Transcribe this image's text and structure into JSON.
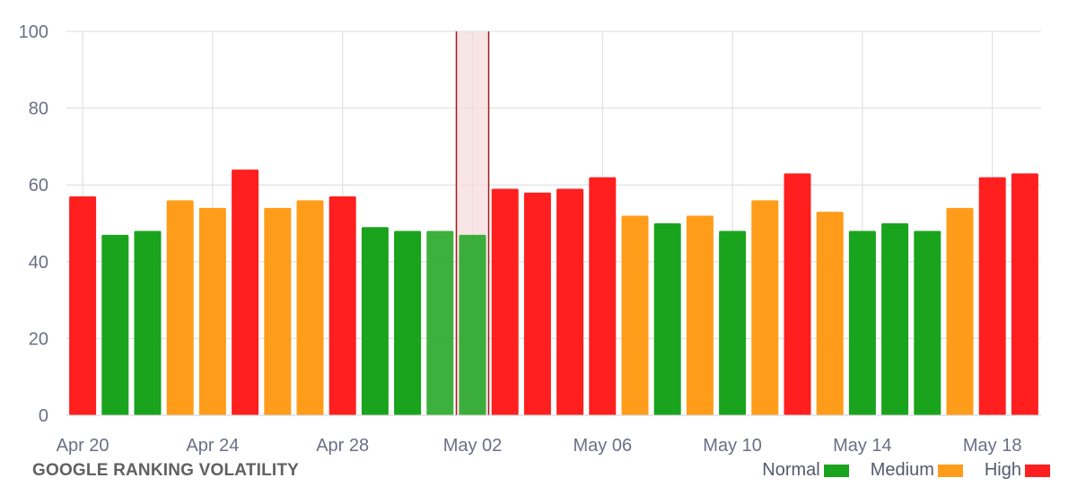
{
  "chart_data": {
    "type": "bar",
    "title": "GOOGLE RANKING VOLATILITY",
    "categories": [
      "Apr 20",
      "Apr 21",
      "Apr 22",
      "Apr 23",
      "Apr 24",
      "Apr 25",
      "Apr 26",
      "Apr 27",
      "Apr 28",
      "Apr 29",
      "Apr 30",
      "May 01",
      "May 02",
      "May 03",
      "May 04",
      "May 05",
      "May 06",
      "May 07",
      "May 08",
      "May 09",
      "May 10",
      "May 11",
      "May 12",
      "May 13",
      "May 14",
      "May 15",
      "May 16",
      "May 17",
      "May 18",
      "May 19"
    ],
    "values": [
      57,
      47,
      48,
      56,
      54,
      64,
      54,
      56,
      57,
      49,
      48,
      48,
      47,
      59,
      58,
      59,
      62,
      52,
      50,
      52,
      48,
      56,
      63,
      53,
      48,
      50,
      48,
      54,
      62,
      63
    ],
    "levels": [
      "High",
      "Normal",
      "Normal",
      "Medium",
      "Medium",
      "High",
      "Medium",
      "Medium",
      "High",
      "Normal",
      "Normal",
      "Normal",
      "Normal",
      "High",
      "High",
      "High",
      "High",
      "Medium",
      "Normal",
      "Medium",
      "Normal",
      "Medium",
      "High",
      "Medium",
      "Normal",
      "Normal",
      "Normal",
      "Medium",
      "High",
      "High"
    ],
    "x_tick_labels": [
      "Apr 20",
      "Apr 24",
      "Apr 28",
      "May 02",
      "May 06",
      "May 10",
      "May 14",
      "May 18"
    ],
    "y_ticks": [
      0,
      20,
      40,
      60,
      80,
      100
    ],
    "ylim": [
      0,
      100
    ],
    "grid": true,
    "highlight_category": "May 02",
    "legend_position": "bottom-right",
    "legend": [
      {
        "label": "Normal",
        "color": "#1aa31c"
      },
      {
        "label": "Medium",
        "color": "#ff9c1a"
      },
      {
        "label": "High",
        "color": "#ff1f1f"
      }
    ],
    "highlight_fill": "#f5dada",
    "highlight_stroke": "#9e1b1b"
  }
}
